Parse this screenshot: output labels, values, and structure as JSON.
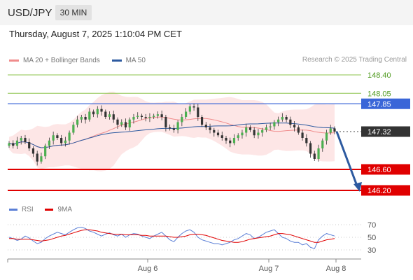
{
  "header": {
    "symbol": "USD/JPY",
    "timeframe": "30 MIN"
  },
  "timestamp": "Thursday, August 7, 2025 1:10:04 PM CET",
  "legend": {
    "ma20_label": "MA 20 + Bollinger Bands",
    "ma50_label": "MA 50",
    "copyright": "Research © 2025 Trading Central",
    "rsi_label": "RSI",
    "rsi_ma_label": "9MA"
  },
  "colors": {
    "resistance_green": "#8bc34a",
    "resistance_blue": "#3a66d8",
    "support_red": "#e00000",
    "ma20": "#f08c8c",
    "ma50": "#2d5aa0",
    "candle_up": "#4caf50",
    "candle_down": "#333333",
    "bollinger_fill": "#fde2e2",
    "arrow": "#2d5aa0",
    "rsi": "#5b7fd6",
    "rsi_ma": "#e00000"
  },
  "chart_data": {
    "type": "candlestick",
    "x_labels": [
      "Aug 6",
      "Aug 7",
      "Aug 8"
    ],
    "price_levels": [
      {
        "value": 148.4,
        "label": "148.40",
        "style": "green-line"
      },
      {
        "value": 148.05,
        "label": "148.05",
        "style": "green-line"
      },
      {
        "value": 147.85,
        "label": "147.85",
        "style": "blue-line"
      },
      {
        "value": 147.32,
        "label": "147.32",
        "style": "current-price"
      },
      {
        "value": 146.6,
        "label": "146.60",
        "style": "red-line"
      },
      {
        "value": 146.2,
        "label": "146.20",
        "style": "red-line"
      }
    ],
    "current_price": 147.32,
    "forecast_target": 146.2,
    "closes": [
      147.1,
      147.05,
      147.15,
      147.2,
      147.12,
      147.0,
      146.9,
      146.75,
      146.85,
      147.05,
      147.15,
      147.25,
      147.2,
      147.1,
      147.15,
      147.3,
      147.45,
      147.55,
      147.6,
      147.55,
      147.7,
      147.65,
      147.75,
      147.7,
      147.6,
      147.65,
      147.55,
      147.45,
      147.5,
      147.4,
      147.55,
      147.6,
      147.62,
      147.6,
      147.58,
      147.6,
      147.62,
      147.65,
      147.6,
      147.4,
      147.38,
      147.35,
      147.5,
      147.6,
      147.7,
      147.8,
      147.78,
      147.6,
      147.45,
      147.4,
      147.35,
      147.3,
      147.25,
      147.2,
      147.15,
      147.1,
      147.2,
      147.25,
      147.3,
      147.4,
      147.35,
      147.25,
      147.3,
      147.35,
      147.4,
      147.42,
      147.5,
      147.55,
      147.6,
      147.55,
      147.45,
      147.4,
      147.3,
      147.2,
      147.1,
      146.9,
      146.8,
      147.0,
      147.15,
      147.3,
      147.38,
      147.32
    ],
    "rsi": {
      "axis_ticks": [
        70,
        50,
        30
      ],
      "values": [
        50,
        48,
        45,
        47,
        52,
        49,
        44,
        40,
        42,
        48,
        52,
        55,
        58,
        56,
        54,
        58,
        62,
        65,
        66,
        64,
        60,
        58,
        55,
        52,
        55,
        57,
        54,
        52,
        55,
        50,
        54,
        56,
        55,
        52,
        50,
        48,
        52,
        55,
        58,
        52,
        46,
        43,
        50,
        56,
        60,
        62,
        58,
        50,
        46,
        44,
        42,
        40,
        40,
        38,
        40,
        42,
        46,
        48,
        52,
        56,
        54,
        48,
        50,
        54,
        58,
        60,
        62,
        56,
        50,
        48,
        44,
        42,
        42,
        38,
        40,
        34,
        32,
        46,
        52,
        56,
        54,
        52
      ],
      "ma9": [
        48,
        48,
        47,
        47,
        47,
        47,
        46,
        45,
        44,
        45,
        46,
        48,
        50,
        52,
        53,
        55,
        57,
        59,
        61,
        62,
        62,
        61,
        60,
        58,
        57,
        56,
        55,
        55,
        55,
        54,
        54,
        54,
        54,
        53,
        53,
        52,
        52,
        52,
        52,
        52,
        51,
        50,
        50,
        51,
        52,
        54,
        55,
        55,
        54,
        53,
        51,
        49,
        47,
        45,
        44,
        43,
        42,
        42,
        43,
        45,
        47,
        48,
        49,
        50,
        51,
        52,
        54,
        56,
        56,
        55,
        54,
        52,
        50,
        48,
        46,
        44,
        42,
        42,
        44,
        46,
        47,
        48
      ]
    }
  }
}
